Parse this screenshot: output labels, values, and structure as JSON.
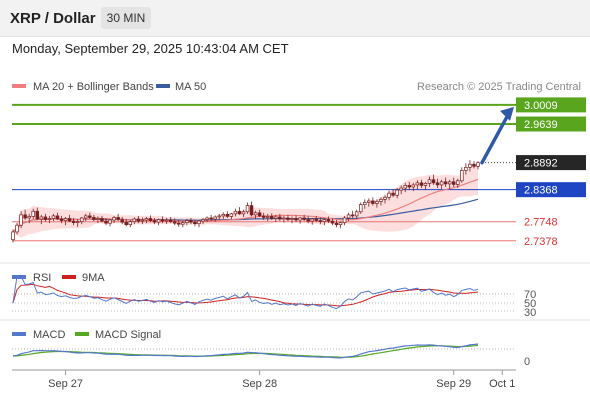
{
  "header": {
    "title": "XRP / Dollar",
    "timeframe": "30 MIN",
    "timestamp": "Monday, September 29, 2025 10:43:04 AM CET"
  },
  "colors": {
    "candle": "#7a1f1f",
    "ma20": "#f08080",
    "bollinger_fill": "#fbd0d0",
    "ma50": "#3a5da0",
    "resistance": "#5aa51e",
    "support": "#e87575",
    "pivot": "#1f45c4",
    "arrow": "#2e59a8",
    "price_box": "#262626",
    "rsi": "#5577cc",
    "rsi_ma": "#cc2222",
    "macd": "#5577cc",
    "macd_signal": "#55aa22"
  },
  "chart_data": [
    {
      "type": "candlestick",
      "title": "",
      "legend": [
        {
          "label": "MA 20 + Bollinger Bands",
          "color_key": "ma20"
        },
        {
          "label": "MA 50",
          "color_key": "ma50"
        }
      ],
      "source": "Research © 2025 Trading Central",
      "ylim": [
        2.72,
        3.022
      ],
      "levels": [
        {
          "value": 3.0009,
          "label": "3.0009",
          "kind": "resistance"
        },
        {
          "value": 2.9639,
          "label": "2.9639",
          "kind": "resistance"
        },
        {
          "value": 2.8892,
          "label": "2.8892",
          "kind": "last"
        },
        {
          "value": 2.8368,
          "label": "2.8368",
          "kind": "pivot"
        },
        {
          "value": 2.7748,
          "label": "2.7748",
          "kind": "support"
        },
        {
          "value": 2.7378,
          "label": "2.7378",
          "kind": "support"
        }
      ],
      "x_tick_labels": [
        {
          "label": "Sep 27",
          "index": 13
        },
        {
          "label": "Sep 28",
          "index": 61
        },
        {
          "label": "Sep 29",
          "index": 109
        },
        {
          "label": "Oct 1",
          "index": 126
        }
      ],
      "ohlc": [
        [
          2.74,
          2.76,
          2.735,
          2.755
        ],
        [
          2.755,
          2.772,
          2.75,
          2.768
        ],
        [
          2.768,
          2.795,
          2.762,
          2.788
        ],
        [
          2.788,
          2.798,
          2.778,
          2.782
        ],
        [
          2.782,
          2.79,
          2.772,
          2.785
        ],
        [
          2.785,
          2.8,
          2.78,
          2.795
        ],
        [
          2.795,
          2.802,
          2.778,
          2.78
        ],
        [
          2.78,
          2.788,
          2.77,
          2.784
        ],
        [
          2.784,
          2.79,
          2.775,
          2.779
        ],
        [
          2.779,
          2.786,
          2.772,
          2.781
        ],
        [
          2.781,
          2.79,
          2.776,
          2.786
        ],
        [
          2.786,
          2.792,
          2.778,
          2.78
        ],
        [
          2.78,
          2.786,
          2.772,
          2.777
        ],
        [
          2.777,
          2.784,
          2.768,
          2.781
        ],
        [
          2.781,
          2.788,
          2.774,
          2.776
        ],
        [
          2.776,
          2.782,
          2.768,
          2.773
        ],
        [
          2.773,
          2.78,
          2.765,
          2.775
        ],
        [
          2.775,
          2.784,
          2.77,
          2.782
        ],
        [
          2.782,
          2.79,
          2.776,
          2.786
        ],
        [
          2.786,
          2.792,
          2.78,
          2.783
        ],
        [
          2.783,
          2.788,
          2.776,
          2.779
        ],
        [
          2.779,
          2.785,
          2.772,
          2.781
        ],
        [
          2.781,
          2.786,
          2.774,
          2.776
        ],
        [
          2.776,
          2.782,
          2.768,
          2.772
        ],
        [
          2.772,
          2.78,
          2.766,
          2.778
        ],
        [
          2.778,
          2.786,
          2.772,
          2.783
        ],
        [
          2.783,
          2.79,
          2.776,
          2.779
        ],
        [
          2.779,
          2.784,
          2.77,
          2.774
        ],
        [
          2.774,
          2.78,
          2.766,
          2.769
        ],
        [
          2.769,
          2.778,
          2.764,
          2.775
        ],
        [
          2.775,
          2.783,
          2.77,
          2.78
        ],
        [
          2.78,
          2.786,
          2.772,
          2.776
        ],
        [
          2.776,
          2.783,
          2.77,
          2.778
        ],
        [
          2.778,
          2.784,
          2.772,
          2.781
        ],
        [
          2.781,
          2.787,
          2.774,
          2.777
        ],
        [
          2.777,
          2.782,
          2.77,
          2.774
        ],
        [
          2.774,
          2.781,
          2.768,
          2.779
        ],
        [
          2.779,
          2.785,
          2.772,
          2.776
        ],
        [
          2.776,
          2.782,
          2.77,
          2.778
        ],
        [
          2.778,
          2.784,
          2.772,
          2.775
        ],
        [
          2.775,
          2.781,
          2.768,
          2.772
        ],
        [
          2.772,
          2.778,
          2.765,
          2.77
        ],
        [
          2.77,
          2.776,
          2.764,
          2.773
        ],
        [
          2.773,
          2.78,
          2.768,
          2.777
        ],
        [
          2.777,
          2.782,
          2.77,
          2.774
        ],
        [
          2.774,
          2.779,
          2.766,
          2.771
        ],
        [
          2.771,
          2.778,
          2.764,
          2.776
        ],
        [
          2.776,
          2.782,
          2.77,
          2.779
        ],
        [
          2.779,
          2.785,
          2.774,
          2.782
        ],
        [
          2.782,
          2.788,
          2.776,
          2.78
        ],
        [
          2.78,
          2.787,
          2.775,
          2.784
        ],
        [
          2.784,
          2.79,
          2.778,
          2.786
        ],
        [
          2.786,
          2.793,
          2.78,
          2.789
        ],
        [
          2.789,
          2.795,
          2.782,
          2.785
        ],
        [
          2.785,
          2.792,
          2.78,
          2.79
        ],
        [
          2.79,
          2.8,
          2.785,
          2.795
        ],
        [
          2.795,
          2.803,
          2.788,
          2.79
        ],
        [
          2.79,
          2.798,
          2.784,
          2.794
        ],
        [
          2.794,
          2.812,
          2.79,
          2.806
        ],
        [
          2.806,
          2.814,
          2.785,
          2.788
        ],
        [
          2.788,
          2.796,
          2.78,
          2.792
        ],
        [
          2.792,
          2.798,
          2.784,
          2.786
        ],
        [
          2.786,
          2.792,
          2.778,
          2.783
        ],
        [
          2.783,
          2.79,
          2.776,
          2.785
        ],
        [
          2.785,
          2.791,
          2.778,
          2.781
        ],
        [
          2.781,
          2.788,
          2.774,
          2.784
        ],
        [
          2.784,
          2.79,
          2.776,
          2.78
        ],
        [
          2.78,
          2.786,
          2.773,
          2.782
        ],
        [
          2.782,
          2.788,
          2.776,
          2.779
        ],
        [
          2.779,
          2.785,
          2.772,
          2.781
        ],
        [
          2.781,
          2.787,
          2.774,
          2.778
        ],
        [
          2.778,
          2.784,
          2.771,
          2.782
        ],
        [
          2.782,
          2.788,
          2.776,
          2.779
        ],
        [
          2.779,
          2.785,
          2.772,
          2.776
        ],
        [
          2.776,
          2.782,
          2.769,
          2.78
        ],
        [
          2.78,
          2.786,
          2.774,
          2.777
        ],
        [
          2.777,
          2.783,
          2.77,
          2.775
        ],
        [
          2.775,
          2.781,
          2.768,
          2.779
        ],
        [
          2.779,
          2.785,
          2.772,
          2.776
        ],
        [
          2.776,
          2.781,
          2.768,
          2.772
        ],
        [
          2.772,
          2.778,
          2.764,
          2.769
        ],
        [
          2.769,
          2.775,
          2.762,
          2.773
        ],
        [
          2.773,
          2.786,
          2.768,
          2.782
        ],
        [
          2.782,
          2.792,
          2.776,
          2.788
        ],
        [
          2.788,
          2.796,
          2.782,
          2.786
        ],
        [
          2.786,
          2.798,
          2.78,
          2.794
        ],
        [
          2.794,
          2.812,
          2.79,
          2.808
        ],
        [
          2.808,
          2.818,
          2.8,
          2.812
        ],
        [
          2.812,
          2.82,
          2.804,
          2.815
        ],
        [
          2.815,
          2.822,
          2.806,
          2.81
        ],
        [
          2.81,
          2.818,
          2.802,
          2.814
        ],
        [
          2.814,
          2.822,
          2.806,
          2.818
        ],
        [
          2.818,
          2.826,
          2.81,
          2.822
        ],
        [
          2.822,
          2.835,
          2.816,
          2.83
        ],
        [
          2.83,
          2.838,
          2.822,
          2.826
        ],
        [
          2.826,
          2.84,
          2.82,
          2.836
        ],
        [
          2.836,
          2.845,
          2.828,
          2.84
        ],
        [
          2.84,
          2.85,
          2.832,
          2.845
        ],
        [
          2.845,
          2.852,
          2.836,
          2.842
        ],
        [
          2.842,
          2.85,
          2.834,
          2.846
        ],
        [
          2.846,
          2.855,
          2.838,
          2.85
        ],
        [
          2.85,
          2.856,
          2.84,
          2.845
        ],
        [
          2.845,
          2.852,
          2.836,
          2.849
        ],
        [
          2.849,
          2.862,
          2.842,
          2.856
        ],
        [
          2.856,
          2.866,
          2.846,
          2.85
        ],
        [
          2.85,
          2.858,
          2.84,
          2.846
        ],
        [
          2.846,
          2.856,
          2.838,
          2.852
        ],
        [
          2.852,
          2.86,
          2.842,
          2.848
        ],
        [
          2.848,
          2.856,
          2.838,
          2.852
        ],
        [
          2.852,
          2.86,
          2.842,
          2.847
        ],
        [
          2.847,
          2.858,
          2.84,
          2.854
        ],
        [
          2.854,
          2.88,
          2.85,
          2.874
        ],
        [
          2.874,
          2.888,
          2.866,
          2.88
        ],
        [
          2.88,
          2.894,
          2.872,
          2.886
        ],
        [
          2.886,
          2.892,
          2.878,
          2.882
        ],
        [
          2.882,
          2.892,
          2.876,
          2.889
        ]
      ]
    },
    {
      "type": "line",
      "title": "",
      "legend": [
        {
          "label": "RSI",
          "color_key": "rsi"
        },
        {
          "label": "9MA",
          "color_key": "rsi_ma"
        }
      ],
      "y_ticks": [
        "70",
        "50",
        "30"
      ],
      "ylim": [
        20,
        80
      ]
    },
    {
      "type": "line",
      "title": "",
      "legend": [
        {
          "label": "MACD",
          "color_key": "macd"
        },
        {
          "label": "MACD Signal",
          "color_key": "macd_signal"
        }
      ],
      "y_ticks": [
        "0"
      ]
    }
  ]
}
